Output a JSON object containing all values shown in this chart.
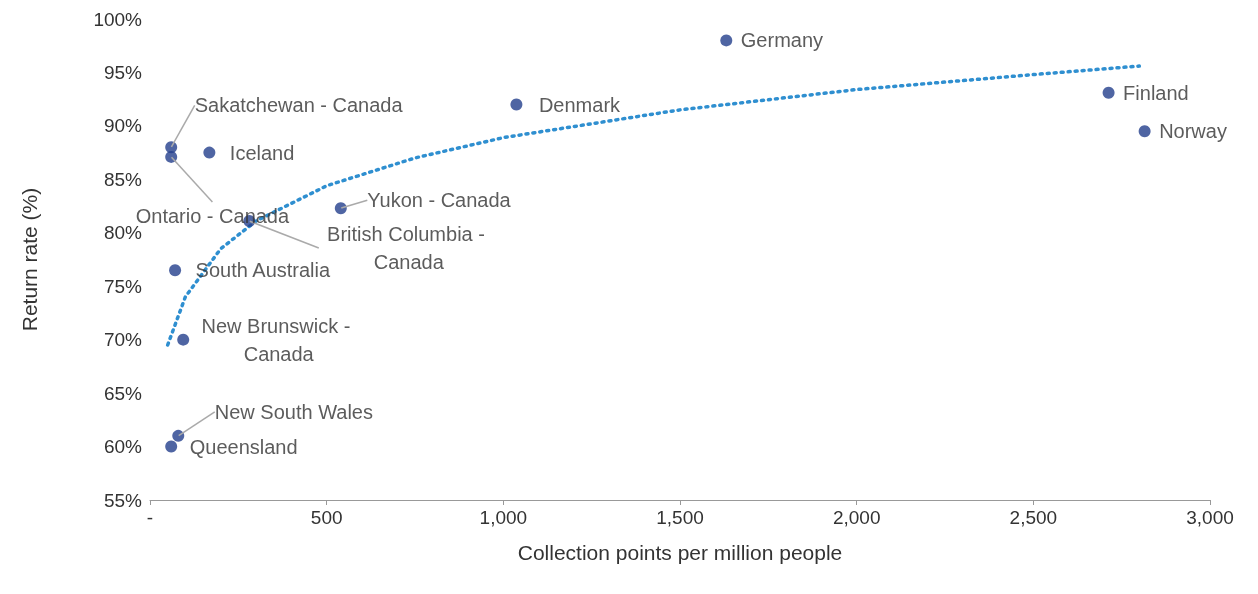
{
  "chart_data": {
    "type": "scatter",
    "xlabel": "Collection points per million people",
    "ylabel": "Return rate (%)",
    "xlim": [
      0,
      3000
    ],
    "xticks": [
      {
        "value": 0,
        "label": "-"
      },
      {
        "value": 500,
        "label": "500"
      },
      {
        "value": 1000,
        "label": "1,000"
      },
      {
        "value": 1500,
        "label": "1,500"
      },
      {
        "value": 2000,
        "label": "2,000"
      },
      {
        "value": 2500,
        "label": "2,500"
      },
      {
        "value": 3000,
        "label": "3,000"
      }
    ],
    "ylim": [
      55,
      100
    ],
    "yticks": [
      {
        "value": 55,
        "label": "55%"
      },
      {
        "value": 60,
        "label": "60%"
      },
      {
        "value": 65,
        "label": "65%"
      },
      {
        "value": 70,
        "label": "70%"
      },
      {
        "value": 75,
        "label": "75%"
      },
      {
        "value": 80,
        "label": "80%"
      },
      {
        "value": 85,
        "label": "85%"
      },
      {
        "value": 90,
        "label": "90%"
      },
      {
        "value": 95,
        "label": "95%"
      },
      {
        "value": 100,
        "label": "100%"
      }
    ],
    "grid": false,
    "marker": "circle",
    "series": [
      {
        "color": "#233f8c",
        "x": [
          1631,
          2713,
          2815,
          1037,
          60,
          60,
          168,
          540,
          281,
          71,
          94,
          80,
          60
        ],
        "values": [
          98.0,
          93.1,
          89.5,
          92.0,
          88.0,
          87.1,
          87.5,
          82.3,
          81.1,
          76.5,
          70.0,
          61.0,
          60.0
        ]
      },
      {
        "type": "line",
        "color": "#2f8fd0",
        "line_style": "dotted",
        "marker": "none",
        "x": [
          50,
          100,
          200,
          300,
          500,
          750,
          1000,
          1500,
          2000,
          2500,
          2800
        ],
        "values": [
          69.5,
          74.0,
          78.5,
          81.1,
          84.4,
          87.0,
          88.9,
          91.5,
          93.4,
          94.8,
          95.6
        ]
      }
    ],
    "annotations": [
      {
        "text": "Germany",
        "x": 1631,
        "y": 98.0
      },
      {
        "text": "Finland",
        "x": 2713,
        "y": 93.1
      },
      {
        "text": "Norway",
        "x": 2815,
        "y": 89.5
      },
      {
        "text": "Denmark",
        "x": 1037,
        "y": 92.0
      },
      {
        "text": "Sakatchewan - Canada",
        "x": 60,
        "y": 88.0
      },
      {
        "text": "Ontario - Canada",
        "x": 60,
        "y": 87.1
      },
      {
        "text": "Iceland",
        "x": 168,
        "y": 87.5
      },
      {
        "text": "Yukon - Canada",
        "x": 540,
        "y": 82.3
      },
      {
        "text": "British Columbia - Canada",
        "x": 281,
        "y": 81.1
      },
      {
        "text": "South Australia",
        "x": 71,
        "y": 76.5
      },
      {
        "text": "New Brunswick - Canada",
        "x": 94,
        "y": 70.0
      },
      {
        "text": "New South Wales",
        "x": 80,
        "y": 61.0
      },
      {
        "text": "Queensland",
        "x": 60,
        "y": 60.0
      }
    ]
  }
}
